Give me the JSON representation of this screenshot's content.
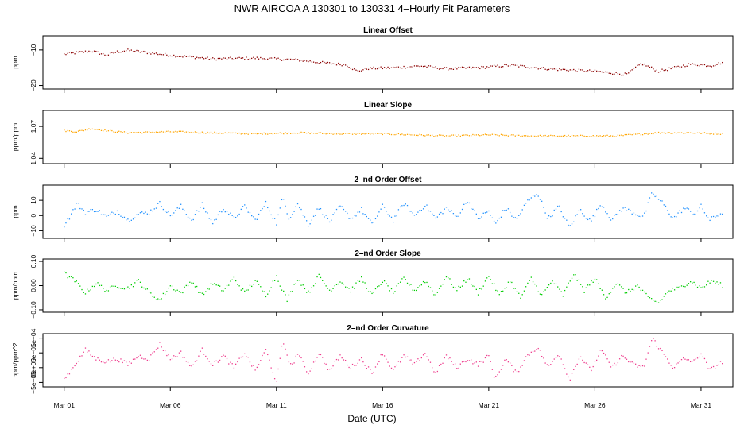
{
  "figure": {
    "title": "NWR   AIRCOA A   130301 to 130331   4–Hourly Fit Parameters",
    "xlabel": "Date (UTC)"
  },
  "chart_data": [
    {
      "type": "scatter",
      "title": "Linear Offset",
      "ylabel": "ppm",
      "color": "#8b0000",
      "x_ticks": [
        "Mar 01",
        "Mar 06",
        "Mar 11",
        "Mar 16",
        "Mar 21",
        "Mar 26",
        "Mar 31"
      ],
      "x_tick_days": [
        1,
        6,
        11,
        16,
        21,
        26,
        31
      ],
      "xlim": [
        0,
        32.5
      ],
      "ylim": [
        -21,
        -6
      ],
      "y_ticks": [
        -20,
        -10
      ],
      "y_tick_labels": [
        "−20",
        "−10"
      ],
      "keyframes": [
        [
          1.0,
          -11.2
        ],
        [
          2.3,
          -10.3
        ],
        [
          3.0,
          -11.5
        ],
        [
          3.5,
          -10.5
        ],
        [
          4.0,
          -10.1
        ],
        [
          6.0,
          -11.5
        ],
        [
          8.0,
          -12.5
        ],
        [
          10.0,
          -12.3
        ],
        [
          12.0,
          -12.8
        ],
        [
          13.0,
          -13.5
        ],
        [
          14.3,
          -14.2
        ],
        [
          14.8,
          -16.0
        ],
        [
          15.3,
          -15.2
        ],
        [
          16.5,
          -15.0
        ],
        [
          17.8,
          -14.5
        ],
        [
          19.0,
          -15.3
        ],
        [
          20.5,
          -15.0
        ],
        [
          22.0,
          -14.3
        ],
        [
          24.0,
          -15.4
        ],
        [
          26.0,
          -16.0
        ],
        [
          27.5,
          -16.9
        ],
        [
          28.2,
          -13.8
        ],
        [
          29.0,
          -16.0
        ],
        [
          30.5,
          -14.0
        ],
        [
          31.5,
          -14.4
        ],
        [
          32.0,
          -13.5
        ]
      ],
      "noise": 0.6
    },
    {
      "type": "scatter",
      "title": "Linear Slope",
      "ylabel": "ppm/ppm",
      "color": "#ffa500",
      "x_ticks": [
        "Mar 01",
        "Mar 06",
        "Mar 11",
        "Mar 16",
        "Mar 21",
        "Mar 26",
        "Mar 31"
      ],
      "x_tick_days": [
        1,
        6,
        11,
        16,
        21,
        26,
        31
      ],
      "xlim": [
        0,
        32.5
      ],
      "ylim": [
        1.035,
        1.085
      ],
      "y_ticks": [
        1.04,
        1.07
      ],
      "y_tick_labels": [
        "1.04",
        "1.07"
      ],
      "keyframes": [
        [
          1.0,
          1.066
        ],
        [
          1.6,
          1.065
        ],
        [
          2.3,
          1.068
        ],
        [
          3.0,
          1.066
        ],
        [
          4.0,
          1.064
        ],
        [
          6.0,
          1.065
        ],
        [
          8.0,
          1.064
        ],
        [
          10.0,
          1.063
        ],
        [
          12.0,
          1.064
        ],
        [
          14.0,
          1.063
        ],
        [
          16.0,
          1.063
        ],
        [
          17.5,
          1.062
        ],
        [
          19.0,
          1.061
        ],
        [
          21.0,
          1.062
        ],
        [
          23.0,
          1.061
        ],
        [
          25.0,
          1.061
        ],
        [
          27.0,
          1.061
        ],
        [
          29.0,
          1.064
        ],
        [
          30.5,
          1.064
        ],
        [
          32.0,
          1.063
        ]
      ],
      "noise": 0.0012
    },
    {
      "type": "scatter",
      "title": "2–nd Order Offset",
      "ylabel": "ppm",
      "color": "#1e90ff",
      "x_ticks": [
        "Mar 01",
        "Mar 06",
        "Mar 11",
        "Mar 16",
        "Mar 21",
        "Mar 26",
        "Mar 31"
      ],
      "x_tick_days": [
        1,
        6,
        11,
        16,
        21,
        26,
        31
      ],
      "xlim": [
        0,
        32.5
      ],
      "ylim": [
        -15,
        20
      ],
      "y_ticks": [
        -10,
        0,
        10
      ],
      "y_tick_labels": [
        "−10",
        "0",
        "10"
      ],
      "keyframes": [
        [
          1.0,
          -6.0
        ],
        [
          1.3,
          0.0
        ],
        [
          1.6,
          8.0
        ],
        [
          2.0,
          2.0
        ],
        [
          2.5,
          4.0
        ],
        [
          3.0,
          -1.0
        ],
        [
          3.5,
          3.0
        ],
        [
          4.0,
          -3.0
        ],
        [
          4.5,
          1.0
        ],
        [
          5.0,
          2.0
        ],
        [
          5.5,
          8.0
        ],
        [
          6.0,
          0.0
        ],
        [
          6.5,
          6.0
        ],
        [
          7.0,
          -3.0
        ],
        [
          7.5,
          7.0
        ],
        [
          8.0,
          -5.0
        ],
        [
          8.5,
          5.0
        ],
        [
          9.0,
          -2.0
        ],
        [
          9.5,
          6.0
        ],
        [
          10.0,
          -3.0
        ],
        [
          10.5,
          8.0
        ],
        [
          11.0,
          -5.0
        ],
        [
          11.3,
          12.0
        ],
        [
          11.6,
          -2.0
        ],
        [
          12.0,
          8.0
        ],
        [
          12.5,
          -6.0
        ],
        [
          13.0,
          5.0
        ],
        [
          13.5,
          -4.0
        ],
        [
          14.0,
          6.0
        ],
        [
          14.5,
          -2.0
        ],
        [
          15.0,
          4.0
        ],
        [
          15.5,
          -6.0
        ],
        [
          16.0,
          6.0
        ],
        [
          16.5,
          -3.0
        ],
        [
          17.0,
          8.0
        ],
        [
          17.5,
          0.0
        ],
        [
          18.0,
          7.0
        ],
        [
          18.5,
          -2.0
        ],
        [
          19.0,
          5.0
        ],
        [
          19.5,
          -1.0
        ],
        [
          20.0,
          10.0
        ],
        [
          20.5,
          -2.0
        ],
        [
          21.0,
          3.0
        ],
        [
          21.3,
          -6.0
        ],
        [
          21.8,
          5.0
        ],
        [
          22.3,
          -3.0
        ],
        [
          22.8,
          9.0
        ],
        [
          23.3,
          15.0
        ],
        [
          23.8,
          -2.0
        ],
        [
          24.3,
          6.0
        ],
        [
          24.8,
          -8.0
        ],
        [
          25.3,
          4.0
        ],
        [
          25.8,
          -4.0
        ],
        [
          26.3,
          8.0
        ],
        [
          26.8,
          -3.0
        ],
        [
          27.3,
          5.0
        ],
        [
          27.8,
          2.0
        ],
        [
          28.3,
          -1.0
        ],
        [
          28.7,
          15.0
        ],
        [
          29.2,
          8.0
        ],
        [
          29.7,
          -2.0
        ],
        [
          30.2,
          5.0
        ],
        [
          30.7,
          1.0
        ],
        [
          31.0,
          6.0
        ],
        [
          31.4,
          -3.0
        ],
        [
          32.0,
          2.0
        ]
      ],
      "noise": 2.5
    },
    {
      "type": "scatter",
      "title": "2–nd Order Slope",
      "ylabel": "ppm/ppm",
      "color": "#00cd00",
      "x_ticks": [
        "Mar 01",
        "Mar 06",
        "Mar 11",
        "Mar 16",
        "Mar 21",
        "Mar 26",
        "Mar 31"
      ],
      "x_tick_days": [
        1,
        6,
        11,
        16,
        21,
        26,
        31
      ],
      "xlim": [
        0,
        32.5
      ],
      "ylim": [
        -0.11,
        0.11
      ],
      "y_ticks": [
        -0.1,
        0.0,
        0.1
      ],
      "y_tick_labels": [
        "−0.10",
        "0.00",
        "0.10"
      ],
      "keyframes": [
        [
          1.0,
          0.05
        ],
        [
          1.5,
          0.02
        ],
        [
          2.0,
          -0.03
        ],
        [
          2.5,
          0.01
        ],
        [
          3.0,
          -0.02
        ],
        [
          3.5,
          0.0
        ],
        [
          4.0,
          -0.01
        ],
        [
          4.5,
          0.02
        ],
        [
          5.0,
          -0.03
        ],
        [
          5.5,
          -0.06
        ],
        [
          6.0,
          0.0
        ],
        [
          6.5,
          -0.03
        ],
        [
          7.0,
          0.02
        ],
        [
          7.5,
          -0.04
        ],
        [
          8.0,
          0.01
        ],
        [
          8.5,
          -0.02
        ],
        [
          9.0,
          0.03
        ],
        [
          9.5,
          -0.03
        ],
        [
          10.0,
          0.02
        ],
        [
          10.5,
          -0.04
        ],
        [
          11.0,
          0.04
        ],
        [
          11.5,
          -0.06
        ],
        [
          12.0,
          0.03
        ],
        [
          12.5,
          -0.03
        ],
        [
          13.0,
          0.04
        ],
        [
          13.5,
          -0.02
        ],
        [
          14.0,
          0.02
        ],
        [
          14.5,
          -0.02
        ],
        [
          15.0,
          0.03
        ],
        [
          15.5,
          -0.04
        ],
        [
          16.0,
          0.02
        ],
        [
          16.5,
          -0.03
        ],
        [
          17.0,
          0.03
        ],
        [
          17.5,
          -0.02
        ],
        [
          18.0,
          0.02
        ],
        [
          18.5,
          -0.04
        ],
        [
          19.0,
          0.04
        ],
        [
          19.5,
          -0.02
        ],
        [
          20.0,
          0.03
        ],
        [
          20.5,
          -0.03
        ],
        [
          21.0,
          0.04
        ],
        [
          21.5,
          -0.04
        ],
        [
          22.0,
          0.02
        ],
        [
          22.5,
          -0.05
        ],
        [
          23.0,
          0.03
        ],
        [
          23.5,
          -0.04
        ],
        [
          24.0,
          0.02
        ],
        [
          24.5,
          -0.04
        ],
        [
          25.0,
          0.05
        ],
        [
          25.5,
          -0.02
        ],
        [
          26.0,
          0.03
        ],
        [
          26.5,
          -0.05
        ],
        [
          27.0,
          0.01
        ],
        [
          27.5,
          -0.03
        ],
        [
          28.0,
          0.0
        ],
        [
          28.5,
          -0.05
        ],
        [
          29.0,
          -0.07
        ],
        [
          29.5,
          -0.02
        ],
        [
          30.0,
          -0.01
        ],
        [
          30.5,
          0.02
        ],
        [
          31.0,
          -0.01
        ],
        [
          31.5,
          0.02
        ],
        [
          32.0,
          0.0
        ]
      ],
      "noise": 0.015
    },
    {
      "type": "scatter",
      "title": "2–nd Order Curvature",
      "ylabel": "ppm/ppm^2",
      "color": "#ee3a8c",
      "x_ticks": [
        "Mar 01",
        "Mar 06",
        "Mar 11",
        "Mar 16",
        "Mar 21",
        "Mar 26",
        "Mar 31"
      ],
      "x_tick_days": [
        1,
        6,
        11,
        16,
        21,
        26,
        31
      ],
      "xlim": [
        0,
        32.5
      ],
      "ylim": [
        -6.5e-05,
        0.000115
      ],
      "y_ticks": [
        -5e-05,
        0.0,
        5e-05,
        0.0001
      ],
      "y_tick_labels": [
        "−5e−05",
        "0e+00",
        "5e−05",
        "1e−04"
      ],
      "keyframes": [
        [
          1.0,
          -4e-05
        ],
        [
          1.5,
          1e-05
        ],
        [
          2.0,
          6e-05
        ],
        [
          2.5,
          3e-05
        ],
        [
          3.0,
          2e-05
        ],
        [
          3.5,
          3e-05
        ],
        [
          4.0,
          1e-05
        ],
        [
          4.5,
          4e-05
        ],
        [
          5.0,
          3e-05
        ],
        [
          5.5,
          8e-05
        ],
        [
          6.0,
          3e-05
        ],
        [
          6.5,
          5e-05
        ],
        [
          7.0,
          0.0
        ],
        [
          7.5,
          6e-05
        ],
        [
          8.0,
          1e-05
        ],
        [
          8.5,
          4e-05
        ],
        [
          9.0,
          0.0
        ],
        [
          9.5,
          5e-05
        ],
        [
          10.0,
          -1e-05
        ],
        [
          10.5,
          6e-05
        ],
        [
          11.0,
          -5e-05
        ],
        [
          11.3,
          9e-05
        ],
        [
          11.7,
          0.0
        ],
        [
          12.0,
          5e-05
        ],
        [
          12.5,
          -2e-05
        ],
        [
          13.0,
          5e-05
        ],
        [
          13.5,
          -1e-05
        ],
        [
          14.0,
          4e-05
        ],
        [
          14.5,
          0.0
        ],
        [
          15.0,
          3e-05
        ],
        [
          15.5,
          -2e-05
        ],
        [
          16.0,
          5e-05
        ],
        [
          16.5,
          -1e-05
        ],
        [
          17.0,
          4e-05
        ],
        [
          17.5,
          1e-05
        ],
        [
          18.0,
          5e-05
        ],
        [
          18.5,
          -2e-05
        ],
        [
          19.0,
          4e-05
        ],
        [
          19.5,
          0.0
        ],
        [
          20.0,
          3e-05
        ],
        [
          20.5,
          1e-05
        ],
        [
          21.0,
          4e-05
        ],
        [
          21.3,
          -4e-05
        ],
        [
          21.8,
          3e-05
        ],
        [
          22.3,
          -2e-05
        ],
        [
          22.8,
          4e-05
        ],
        [
          23.3,
          7e-05
        ],
        [
          23.8,
          0.0
        ],
        [
          24.3,
          5e-05
        ],
        [
          24.8,
          -4e-05
        ],
        [
          25.3,
          4e-05
        ],
        [
          25.8,
          -1e-05
        ],
        [
          26.3,
          6e-05
        ],
        [
          26.8,
          0.0
        ],
        [
          27.3,
          4e-05
        ],
        [
          27.8,
          1e-05
        ],
        [
          28.3,
          0.0
        ],
        [
          28.7,
          0.0001
        ],
        [
          29.2,
          5e-05
        ],
        [
          29.7,
          0.0
        ],
        [
          30.2,
          3e-05
        ],
        [
          30.7,
          2e-05
        ],
        [
          31.0,
          5e-05
        ],
        [
          31.4,
          -1e-05
        ],
        [
          32.0,
          2e-05
        ]
      ],
      "noise": 1.2e-05
    }
  ]
}
